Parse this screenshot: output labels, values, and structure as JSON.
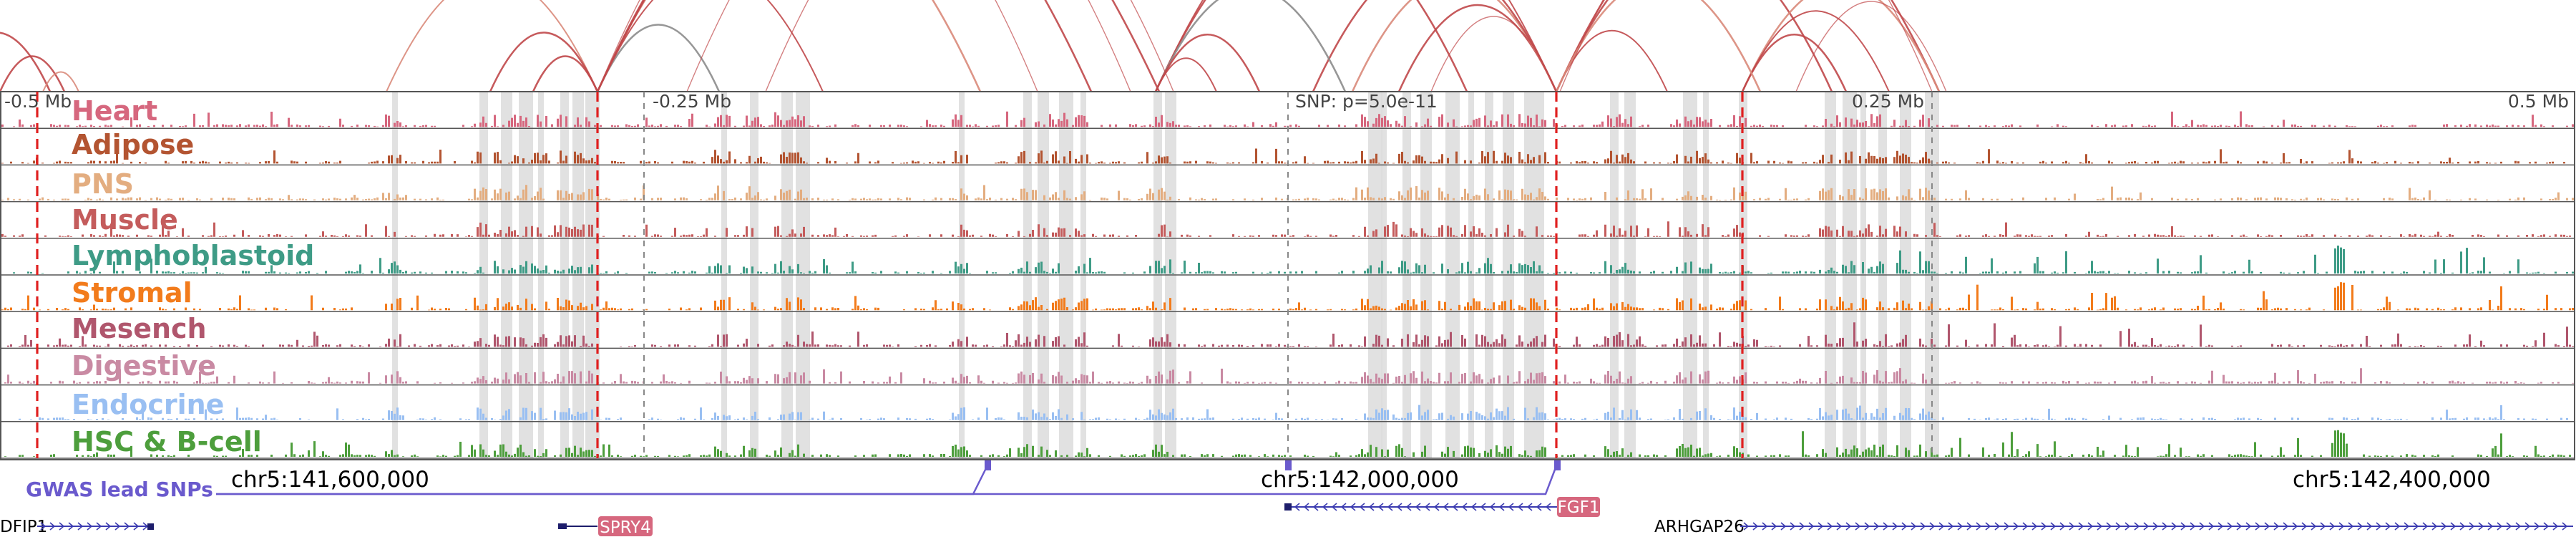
{
  "figure": {
    "axis_ticks": [
      {
        "label": "-0.5 Mb",
        "bp": -500000
      },
      {
        "label": "-0.25 Mb",
        "bp": -250000
      },
      {
        "label": "SNP: p=5.0e-11",
        "bp": 0
      },
      {
        "label": "0.25 Mb",
        "bp": 250000
      },
      {
        "label": "0.5 Mb",
        "bp": 500000
      }
    ],
    "tracks": [
      {
        "name": "Heart",
        "color": "#d6677e"
      },
      {
        "name": "Adipose",
        "color": "#b35431"
      },
      {
        "name": "PNS",
        "color": "#e3ad80"
      },
      {
        "name": "Muscle",
        "color": "#c45c5c"
      },
      {
        "name": "Lymphoblastoid",
        "color": "#3e9b86"
      },
      {
        "name": "Stromal",
        "color": "#f27b1b"
      },
      {
        "name": "Mesench",
        "color": "#b0566d"
      },
      {
        "name": "Digestive",
        "color": "#c98aa3"
      },
      {
        "name": "Endocrine",
        "color": "#99bff2"
      },
      {
        "name": "HSC & B-cell",
        "color": "#4d9e3c"
      }
    ],
    "gwas_label": "GWAS lead SNPs",
    "gwas_color": "#6a5acd",
    "coordinate_labels": [
      "chr5:141,600,000",
      "chr5:142,000,000",
      "chr5:142,400,000"
    ],
    "genes": [
      {
        "name": "DFIP1",
        "strand": "+",
        "label_style": "plain"
      },
      {
        "name": "SPRY4",
        "strand": "-",
        "label_style": "box"
      },
      {
        "name": "FGF1",
        "strand": "-",
        "label_style": "box"
      },
      {
        "name": "ARHGAP26",
        "strand": "+",
        "label_style": "plain"
      }
    ],
    "loop_color": "#c0484a",
    "highlight_color": "#dcdcdc",
    "marker_color": "#e02020"
  }
}
